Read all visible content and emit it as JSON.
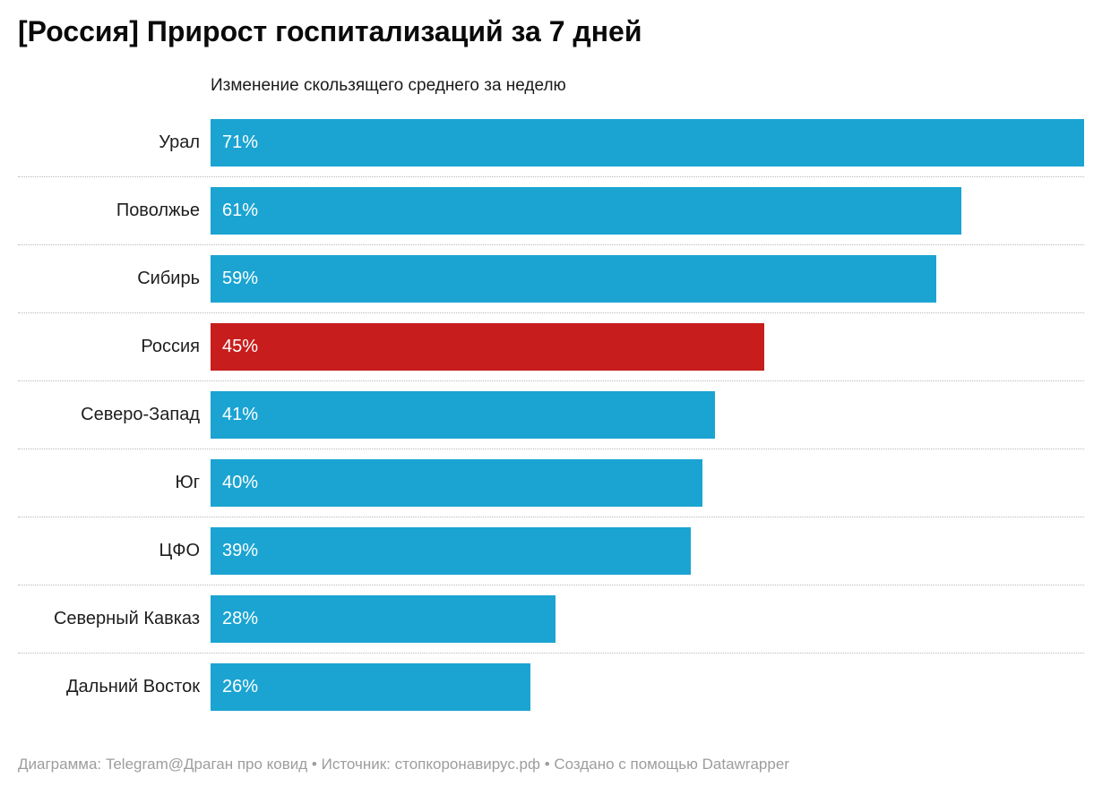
{
  "header": {
    "title": "[Россия] Прирост госпитализаций за 7 дней"
  },
  "chart_data": {
    "type": "bar",
    "orientation": "horizontal",
    "title": "[Россия] Прирост госпитализаций за 7 дней",
    "subtitle": "Изменение скользящего среднего за неделю",
    "categories": [
      "Урал",
      "Поволжье",
      "Сибирь",
      "Россия",
      "Северо-Запад",
      "Юг",
      "ЦФО",
      "Северный Кавказ",
      "Дальний Восток"
    ],
    "values": [
      71,
      61,
      59,
      45,
      41,
      40,
      39,
      28,
      26
    ],
    "value_labels": [
      "71%",
      "61%",
      "59%",
      "45%",
      "41%",
      "40%",
      "39%",
      "28%",
      "26%"
    ],
    "unit": "%",
    "xlim": [
      0,
      71
    ],
    "highlight_category": "Россия",
    "bar_color": "#1ba4d2",
    "highlight_color": "#c71e1d",
    "value_label_color": "#ffffff",
    "grid": "dotted-row-separators",
    "legend_position": "none"
  },
  "footer": {
    "attribution": "Диаграмма: Telegram@Драган про ковид • Источник: стопкоронавирус.рф • Создано с помощью Datawrapper"
  }
}
